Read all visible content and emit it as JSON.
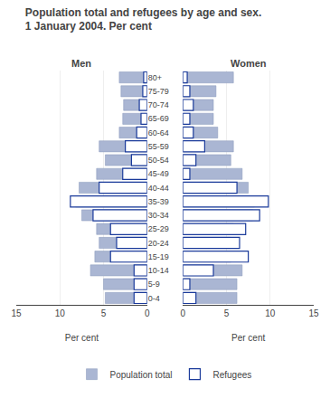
{
  "title": "Population total and refugees by age and sex.",
  "subtitle": "1 January 2004. Per cent",
  "chart_data": [
    {
      "type": "bar",
      "orientation": "horizontal",
      "title": "Men",
      "categories": [
        "80+",
        "75-79",
        "70-74",
        "65-69",
        "60-64",
        "55-59",
        "50-54",
        "45-49",
        "40-44",
        "35-39",
        "30-34",
        "25-29",
        "20-24",
        "15-19",
        "10-14",
        "5-9",
        "0-4"
      ],
      "series": [
        {
          "name": "Population total",
          "color": "#aab6d3",
          "values": [
            3.2,
            3.0,
            2.7,
            2.8,
            3.2,
            5.5,
            4.8,
            5.8,
            7.8,
            8.2,
            7.5,
            5.8,
            5.5,
            6.0,
            6.5,
            5.0,
            4.8
          ]
        },
        {
          "name": "Refugees",
          "color": "#1a3a9a",
          "marker": "hollow",
          "values": [
            0.4,
            0.5,
            0.9,
            0.7,
            1.2,
            2.5,
            1.8,
            2.8,
            5.5,
            8.8,
            6.2,
            4.2,
            3.5,
            4.2,
            1.5,
            1.5,
            1.5
          ]
        }
      ],
      "xlabel": "Per cent",
      "xlim": [
        15,
        0
      ],
      "xticks": [
        15,
        10,
        5,
        0
      ],
      "grid": true,
      "legend": "bottom"
    },
    {
      "type": "bar",
      "orientation": "horizontal",
      "title": "Women",
      "categories": [
        "80+",
        "75-79",
        "70-74",
        "65-69",
        "60-64",
        "55-59",
        "50-54",
        "45-49",
        "40-44",
        "35-39",
        "30-34",
        "25-29",
        "20-24",
        "15-19",
        "10-14",
        "5-9",
        "0-4"
      ],
      "series": [
        {
          "name": "Population total",
          "color": "#aab6d3",
          "values": [
            5.8,
            3.8,
            3.5,
            3.5,
            4.0,
            5.8,
            5.5,
            6.8,
            7.5,
            8.2,
            8.0,
            5.8,
            5.5,
            5.5,
            6.8,
            6.2,
            6.2
          ]
        },
        {
          "name": "Refugees",
          "color": "#1a3a9a",
          "marker": "hollow",
          "values": [
            0.5,
            0.8,
            1.2,
            0.8,
            1.2,
            2.5,
            1.5,
            0.8,
            6.2,
            9.8,
            8.8,
            7.2,
            6.5,
            7.5,
            3.5,
            0.8,
            1.5
          ]
        }
      ],
      "xlabel": "Per cent",
      "xlim": [
        0,
        15
      ],
      "xticks": [
        0,
        5,
        10,
        15
      ],
      "grid": true,
      "legend": "bottom"
    }
  ]
}
